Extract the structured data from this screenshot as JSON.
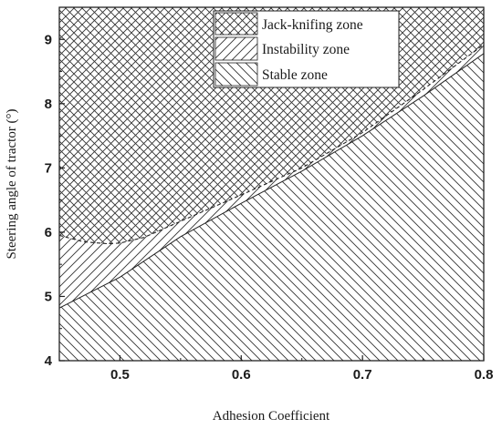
{
  "chart_data": {
    "type": "area",
    "xlabel": "Adhesion Coefficient",
    "ylabel": "Steering angle of tractor (°)",
    "xlim": [
      0.45,
      0.8
    ],
    "ylim": [
      4,
      9.5
    ],
    "x_ticks": [
      "0.5",
      "0.6",
      "0.7",
      "0.8"
    ],
    "y_ticks": [
      "4",
      "5",
      "6",
      "7",
      "8",
      "9"
    ],
    "legend_position": "top-right",
    "series": [
      {
        "name": "Jack-knifing zone",
        "pattern": "crosshatch",
        "region": "above instability boundary",
        "x": [
          0.45,
          0.8
        ],
        "y": [
          9.5,
          9.5
        ]
      },
      {
        "name": "Instability zone",
        "pattern": "forward-diagonal",
        "region": "between stable boundary and instability boundary",
        "x": [
          0.45,
          0.47,
          0.49,
          0.5,
          0.52,
          0.55,
          0.6,
          0.65,
          0.7,
          0.75,
          0.8
        ],
        "y": [
          5.95,
          5.85,
          5.82,
          5.83,
          5.92,
          6.17,
          6.58,
          7.0,
          7.55,
          8.22,
          8.92
        ]
      },
      {
        "name": "Stable zone",
        "pattern": "back-diagonal",
        "region": "below stable boundary",
        "x": [
          0.45,
          0.5,
          0.55,
          0.6,
          0.65,
          0.7,
          0.75,
          0.8
        ],
        "y": [
          4.82,
          5.3,
          5.93,
          6.45,
          6.95,
          7.5,
          8.12,
          8.78
        ]
      }
    ]
  }
}
